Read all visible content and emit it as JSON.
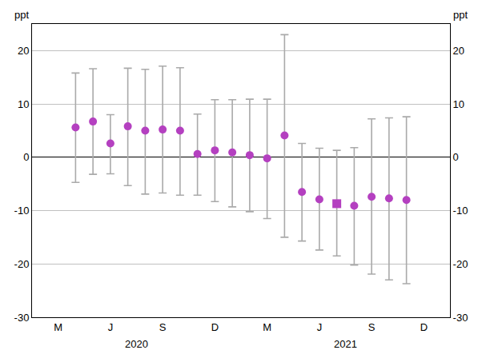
{
  "chart_data": {
    "type": "scatter",
    "ylabel": "ppt",
    "categories": [
      null,
      "M",
      null,
      null,
      "J",
      null,
      null,
      "S",
      null,
      null,
      "D",
      null,
      null,
      "M",
      null,
      null,
      "J",
      null,
      null,
      "S",
      null,
      null,
      "D",
      null
    ],
    "annotations": [
      {
        "text": "2020",
        "x": 5.5
      },
      {
        "text": "2021",
        "x": 17.5
      }
    ],
    "series": [
      {
        "color": "#b440c0",
        "marker": "circle",
        "values": [
          null,
          null,
          5.6,
          6.7,
          2.6,
          5.8,
          5.0,
          5.2,
          5.0,
          0.6,
          1.3,
          0.9,
          0.4,
          -0.2,
          4.1,
          -6.5,
          -7.9,
          null,
          -9.1,
          -7.4,
          -7.7,
          -8.0,
          null,
          null
        ],
        "upper": [
          null,
          null,
          15.8,
          16.6,
          8.0,
          16.7,
          16.5,
          17.1,
          16.8,
          8.1,
          10.8,
          10.8,
          10.9,
          10.9,
          23.0,
          2.6,
          1.7,
          null,
          1.8,
          7.2,
          7.4,
          7.6,
          null,
          null
        ],
        "lower": [
          null,
          null,
          -4.7,
          -3.2,
          -3.1,
          -5.3,
          -6.9,
          -6.7,
          -7.1,
          -7.1,
          -8.3,
          -9.3,
          -10.2,
          -11.5,
          -15.0,
          -15.7,
          -17.4,
          null,
          -20.2,
          -21.9,
          -23.0,
          -23.7,
          null,
          null
        ]
      },
      {
        "color": "#b440c0",
        "marker": "square",
        "values": [
          null,
          null,
          null,
          null,
          null,
          null,
          null,
          null,
          null,
          null,
          null,
          null,
          null,
          null,
          null,
          null,
          null,
          -8.7,
          null,
          null,
          null,
          null,
          null,
          null
        ],
        "upper": [
          null,
          null,
          null,
          null,
          null,
          null,
          null,
          null,
          null,
          null,
          null,
          null,
          null,
          null,
          null,
          null,
          null,
          1.3,
          null,
          null,
          null,
          null,
          null,
          null
        ],
        "lower": [
          null,
          null,
          null,
          null,
          null,
          null,
          null,
          null,
          null,
          null,
          null,
          null,
          null,
          null,
          null,
          null,
          null,
          -18.5,
          null,
          null,
          null,
          null,
          null,
          null
        ]
      }
    ],
    "ylim": [
      -30,
      25
    ],
    "yticks": [
      -30,
      -20,
      -10,
      0,
      10,
      20
    ],
    "grid": true
  }
}
